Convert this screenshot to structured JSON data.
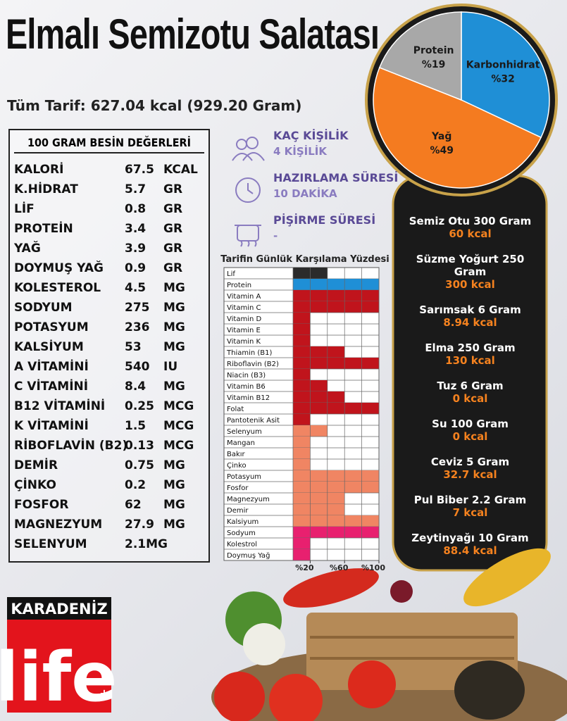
{
  "title": "Elmalı Semizotu Salatası",
  "total": "Tüm Tarif: 627.04 kcal (929.20 Gram)",
  "nutrition": {
    "header": "100 GRAM BESİN DEĞERLERİ",
    "rows": [
      [
        "KALORİ",
        "67.5",
        "KCAL"
      ],
      [
        "K.HİDRAT",
        "5.7",
        "GR"
      ],
      [
        "LİF",
        "0.8",
        "GR"
      ],
      [
        "PROTEİN",
        "3.4",
        "GR"
      ],
      [
        "YAĞ",
        "3.9",
        "GR"
      ],
      [
        "DOYMUŞ YAĞ",
        "0.9",
        "GR"
      ],
      [
        "KOLESTEROL",
        "4.5",
        "MG"
      ],
      [
        "SODYUM",
        "275",
        "MG"
      ],
      [
        "POTASYUM",
        "236",
        "MG"
      ],
      [
        "KALSİYUM",
        "53",
        "MG"
      ],
      [
        "A VİTAMİNİ",
        "540",
        "IU"
      ],
      [
        "C VİTAMİNİ",
        "8.4",
        "MG"
      ],
      [
        "B12 VİTAMİNİ",
        "0.25",
        "MCG"
      ],
      [
        "K VİTAMİNİ",
        "1.5",
        "MCG"
      ],
      [
        "RİBOFLAVİN (B2)",
        "0.13",
        "MCG"
      ],
      [
        "DEMİR",
        "0.75",
        "MG"
      ],
      [
        "ÇİNKO",
        "0.2",
        "MG"
      ],
      [
        "FOSFOR",
        "62",
        "MG"
      ],
      [
        "MAGNEZYUM",
        "27.9",
        "MG"
      ],
      [
        "SELENYUM",
        "2.1MG"
      ]
    ]
  },
  "info": [
    {
      "label": "KAÇ KİŞİLİK",
      "value": "4 KİŞİLİK"
    },
    {
      "label": "HAZIRLAMA SÜRESİ",
      "value": "10 DAKİKA"
    },
    {
      "label": "PİŞİRME SÜRESİ",
      "value": "-"
    }
  ],
  "ingredients": [
    {
      "name": "Semiz Otu 300 Gram",
      "kcal": "60 kcal"
    },
    {
      "name": "Süzme Yoğurt 250 Gram",
      "kcal": "300 kcal"
    },
    {
      "name": "Sarımsak 6 Gram",
      "kcal": "8.94 kcal"
    },
    {
      "name": "Elma 250 Gram",
      "kcal": "130 kcal"
    },
    {
      "name": "Tuz 6 Gram",
      "kcal": "0 kcal"
    },
    {
      "name": "Su 100 Gram",
      "kcal": "0 kcal"
    },
    {
      "name": "Ceviz 5 Gram",
      "kcal": "32.7 kcal"
    },
    {
      "name": "Pul Biber 2.2 Gram",
      "kcal": "7 kcal"
    },
    {
      "name": "Zeytinyağı 10 Gram",
      "kcal": "88.4 kcal"
    }
  ],
  "logo": {
    "top": "KARADENİZ",
    "main": "life",
    "plus": "+"
  },
  "chart_data": [
    {
      "type": "pie",
      "categories": [
        "Karbonhidrat",
        "Yağ",
        "Protein"
      ],
      "values": [
        32,
        49,
        19
      ],
      "value_labels": [
        "%32",
        "%49",
        "%19"
      ],
      "colors": [
        "#1f8fd6",
        "#f47b20",
        "#a8a8a8"
      ]
    },
    {
      "type": "bar",
      "orientation": "horizontal",
      "title": "Tarifin Günlük Karşılama Yüzdesi",
      "categories": [
        "Lif",
        "Protein",
        "Vitamin A",
        "Vitamin C",
        "Vitamin D",
        "Vitamin E",
        "Vitamin K",
        "Thiamin (B1)",
        "Riboflavin (B2)",
        "Niacin (B3)",
        "Vitamin B6",
        "Vitamin B12",
        "Folat",
        "Pantotenik Asit",
        "Selenyum",
        "Mangan",
        "Bakır",
        "Çinko",
        "Potasyum",
        "Fosfor",
        "Magnezyum",
        "Demir",
        "Kalsiyum",
        "Sodyum",
        "Kolestrol",
        "Doymuş Yağ"
      ],
      "values": [
        40,
        100,
        100,
        100,
        20,
        20,
        20,
        60,
        100,
        20,
        40,
        60,
        100,
        20,
        40,
        20,
        20,
        20,
        100,
        100,
        60,
        60,
        100,
        100,
        20,
        20
      ],
      "colors": [
        "#2b2b2b",
        "#1f8fd6",
        "#c0141c",
        "#c0141c",
        "#c0141c",
        "#c0141c",
        "#c0141c",
        "#c0141c",
        "#c0141c",
        "#c0141c",
        "#c0141c",
        "#c0141c",
        "#c0141c",
        "#c0141c",
        "#f08563",
        "#f08563",
        "#f08563",
        "#f08563",
        "#f08563",
        "#f08563",
        "#f08563",
        "#f08563",
        "#f08563",
        "#e8206f",
        "#e8206f",
        "#e8206f"
      ],
      "xlim": [
        0,
        100
      ],
      "xticks": [
        {
          "value": 20,
          "label": "%20"
        },
        {
          "value": 60,
          "label": "%60"
        },
        {
          "value": 100,
          "label": "%100"
        }
      ]
    }
  ]
}
